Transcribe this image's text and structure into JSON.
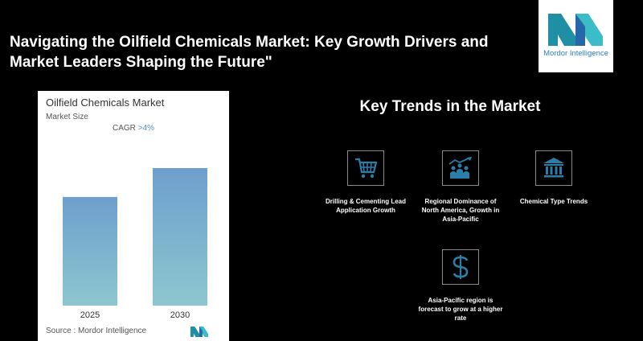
{
  "page": {
    "title": "Navigating the Oilfield Chemicals Market: Key Growth Drivers and Market Leaders Shaping the Future\""
  },
  "logo": {
    "brand": "Mordor Intelligence",
    "color": "#2c7fb8"
  },
  "chart_data": {
    "type": "bar",
    "title": "Oilfield Chemicals Market",
    "subtitle": "Market Size",
    "cagr_label": "CAGR",
    "cagr_value": ">4%",
    "categories": [
      "2025",
      "2030"
    ],
    "values": [
      0.79,
      1.0
    ],
    "value_note": "relative heights; no absolute values printed",
    "source": "Source :  Mordor Intelligence",
    "colors": {
      "bar_top": "#6e9fcd",
      "bar_bottom": "#8dc6cf"
    }
  },
  "trends": {
    "title": "Key Trends in the Market",
    "items": [
      {
        "icon": "shopping-cart-icon",
        "label": "Drilling & Cementing Lead Application Growth"
      },
      {
        "icon": "growth-people-icon",
        "label": "Regional Dominance of North America, Growth in Asia-Pacific"
      },
      {
        "icon": "institution-icon",
        "label": "Chemical Type Trends"
      },
      {
        "icon": "dollar-icon",
        "label": "Asia-Pacific region is forecast to grow at a higher rate"
      }
    ],
    "icon_color": "#2a7fa8"
  }
}
